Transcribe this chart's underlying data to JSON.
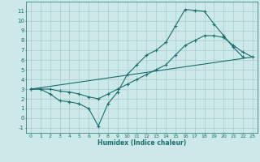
{
  "xlabel": "Humidex (Indice chaleur)",
  "bg_color": "#cce8e8",
  "grid_color": "#aacccc",
  "line_color": "#1a6e6e",
  "xlim": [
    -0.5,
    23.5
  ],
  "ylim": [
    -1.5,
    12.0
  ],
  "xticks": [
    0,
    1,
    2,
    3,
    4,
    5,
    6,
    7,
    8,
    9,
    10,
    11,
    12,
    13,
    14,
    15,
    16,
    17,
    18,
    19,
    20,
    21,
    22,
    23
  ],
  "yticks": [
    -1,
    0,
    1,
    2,
    3,
    4,
    5,
    6,
    7,
    8,
    9,
    10,
    11
  ],
  "series1_x": [
    0,
    1,
    2,
    3,
    4,
    5,
    6,
    7,
    8,
    9,
    10,
    11,
    12,
    13,
    14,
    15,
    16,
    17,
    18,
    19,
    20,
    21,
    22
  ],
  "series1_y": [
    3.0,
    3.0,
    2.5,
    1.8,
    1.7,
    1.5,
    1.0,
    -0.8,
    1.5,
    2.7,
    4.5,
    5.5,
    6.5,
    7.0,
    7.8,
    9.5,
    11.2,
    11.1,
    11.0,
    9.7,
    8.5,
    7.3,
    6.3
  ],
  "series2_x": [
    0,
    1,
    2,
    3,
    4,
    5,
    6,
    7,
    8,
    9,
    10,
    11,
    12,
    13,
    14,
    15,
    16,
    17,
    18,
    19,
    20,
    21,
    22,
    23
  ],
  "series2_y": [
    3.0,
    3.0,
    3.0,
    2.8,
    2.7,
    2.5,
    2.2,
    2.0,
    2.5,
    3.0,
    3.5,
    4.0,
    4.5,
    5.0,
    5.5,
    6.5,
    7.5,
    8.0,
    8.5,
    8.5,
    8.3,
    7.5,
    6.8,
    6.3
  ],
  "series3_x": [
    0,
    23
  ],
  "series3_y": [
    3.0,
    6.3
  ]
}
